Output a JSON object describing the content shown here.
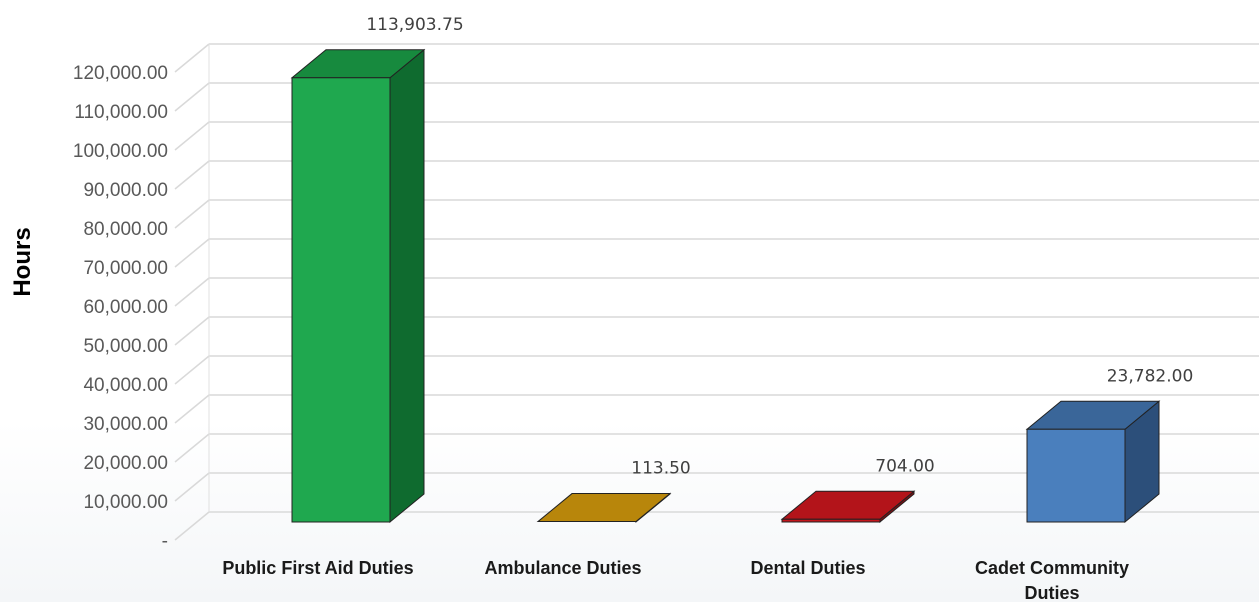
{
  "chart_data": {
    "type": "bar",
    "title": "",
    "xlabel": "",
    "ylabel": "Hours",
    "ylim": [
      0,
      120000
    ],
    "grid": true,
    "categories": [
      [
        "Public First Aid Duties"
      ],
      [
        "Ambulance Duties"
      ],
      [
        "Dental Duties"
      ],
      [
        "Cadet Community",
        "Duties"
      ]
    ],
    "values": [
      113903.75,
      113.5,
      704.0,
      23782.0
    ],
    "value_labels": [
      "113,903.75",
      "113.50",
      "704.00",
      "23,782.00"
    ],
    "y_ticks": [
      {
        "value": 0,
        "label": "-"
      },
      {
        "value": 10000,
        "label": "10,000.00"
      },
      {
        "value": 20000,
        "label": "20,000.00"
      },
      {
        "value": 30000,
        "label": "30,000.00"
      },
      {
        "value": 40000,
        "label": "40,000.00"
      },
      {
        "value": 50000,
        "label": "50,000.00"
      },
      {
        "value": 60000,
        "label": "60,000.00"
      },
      {
        "value": 70000,
        "label": "70,000.00"
      },
      {
        "value": 80000,
        "label": "80,000.00"
      },
      {
        "value": 90000,
        "label": "90,000.00"
      },
      {
        "value": 100000,
        "label": "100,000.00"
      },
      {
        "value": 110000,
        "label": "110,000.00"
      },
      {
        "value": 120000,
        "label": "120,000.00"
      }
    ],
    "colors": [
      {
        "front": "#1fa84f",
        "top": "#178a3e",
        "side": "#0f6b2f"
      },
      {
        "front": "#c79a1c",
        "top": "#b8860b",
        "side": "#8a6408"
      },
      {
        "front": "#c4161c",
        "top": "#b3141a",
        "side": "#7f0e12"
      },
      {
        "front": "#4a7fbd",
        "top": "#3a6699",
        "side": "#2c4f7a"
      }
    ]
  }
}
